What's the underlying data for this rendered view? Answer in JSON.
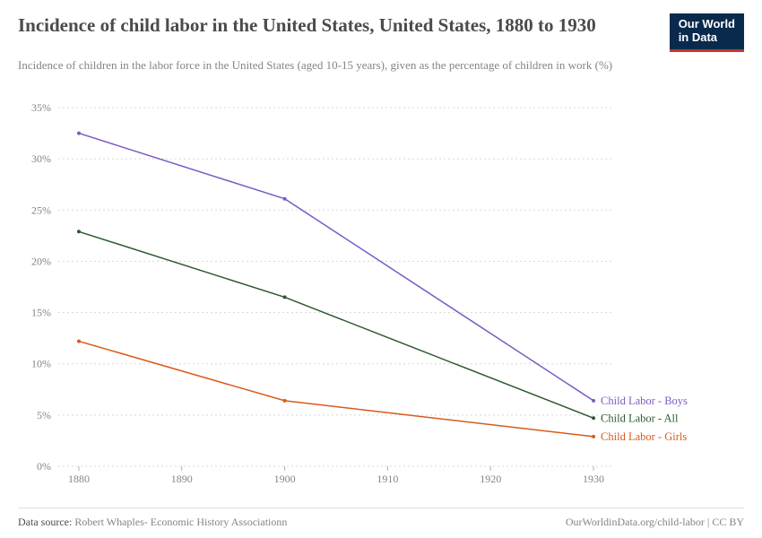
{
  "header": {
    "title": "Incidence of child labor in the United States, United States, 1880 to 1930",
    "subtitle": "Incidence of children in the labor force in the United States (aged 10-15 years), given as the percentage of children in work (%)",
    "logo_line1": "Our World",
    "logo_line2": "in Data",
    "logo_bg": "#0a2a4d",
    "logo_accent": "#c0392b"
  },
  "chart": {
    "type": "line",
    "background_color": "#ffffff",
    "grid_color": "#d8d8d8",
    "grid_dash": "2,3",
    "axis_text_color": "#848484",
    "axis_fontsize": 12,
    "x": {
      "ticks": [
        1880,
        1890,
        1900,
        1910,
        1920,
        1930
      ],
      "tick_labels": [
        "1880",
        "1890",
        "1900",
        "1910",
        "1920",
        "1930"
      ],
      "lim": [
        1878,
        1932
      ]
    },
    "y": {
      "ticks": [
        0,
        5,
        10,
        15,
        20,
        25,
        30,
        35
      ],
      "tick_labels": [
        "0%",
        "5%",
        "10%",
        "15%",
        "20%",
        "25%",
        "30%",
        "35%"
      ],
      "lim": [
        0,
        35
      ]
    },
    "series": [
      {
        "id": "boys",
        "label": "Child Labor - Boys",
        "color": "#7b5bc4",
        "line_width": 1.5,
        "marker": "circle",
        "marker_size": 2,
        "x": [
          1880,
          1900,
          1930
        ],
        "y": [
          32.5,
          26.1,
          6.4
        ]
      },
      {
        "id": "all",
        "label": "Child Labor - All",
        "color": "#2e5a2e",
        "line_width": 1.5,
        "marker": "circle",
        "marker_size": 2,
        "x": [
          1880,
          1900,
          1930
        ],
        "y": [
          22.9,
          16.5,
          4.7
        ]
      },
      {
        "id": "girls",
        "label": "Child Labor - Girls",
        "color": "#d85a1a",
        "line_width": 1.5,
        "marker": "circle",
        "marker_size": 2,
        "x": [
          1880,
          1900,
          1930
        ],
        "y": [
          12.2,
          6.4,
          2.9
        ]
      }
    ],
    "label_fontsize": 12.5
  },
  "footer": {
    "source_label": "Data source:",
    "source_value": "Robert Whaples- Economic History Associationn",
    "right": "OurWorldinData.org/child-labor | CC BY"
  }
}
